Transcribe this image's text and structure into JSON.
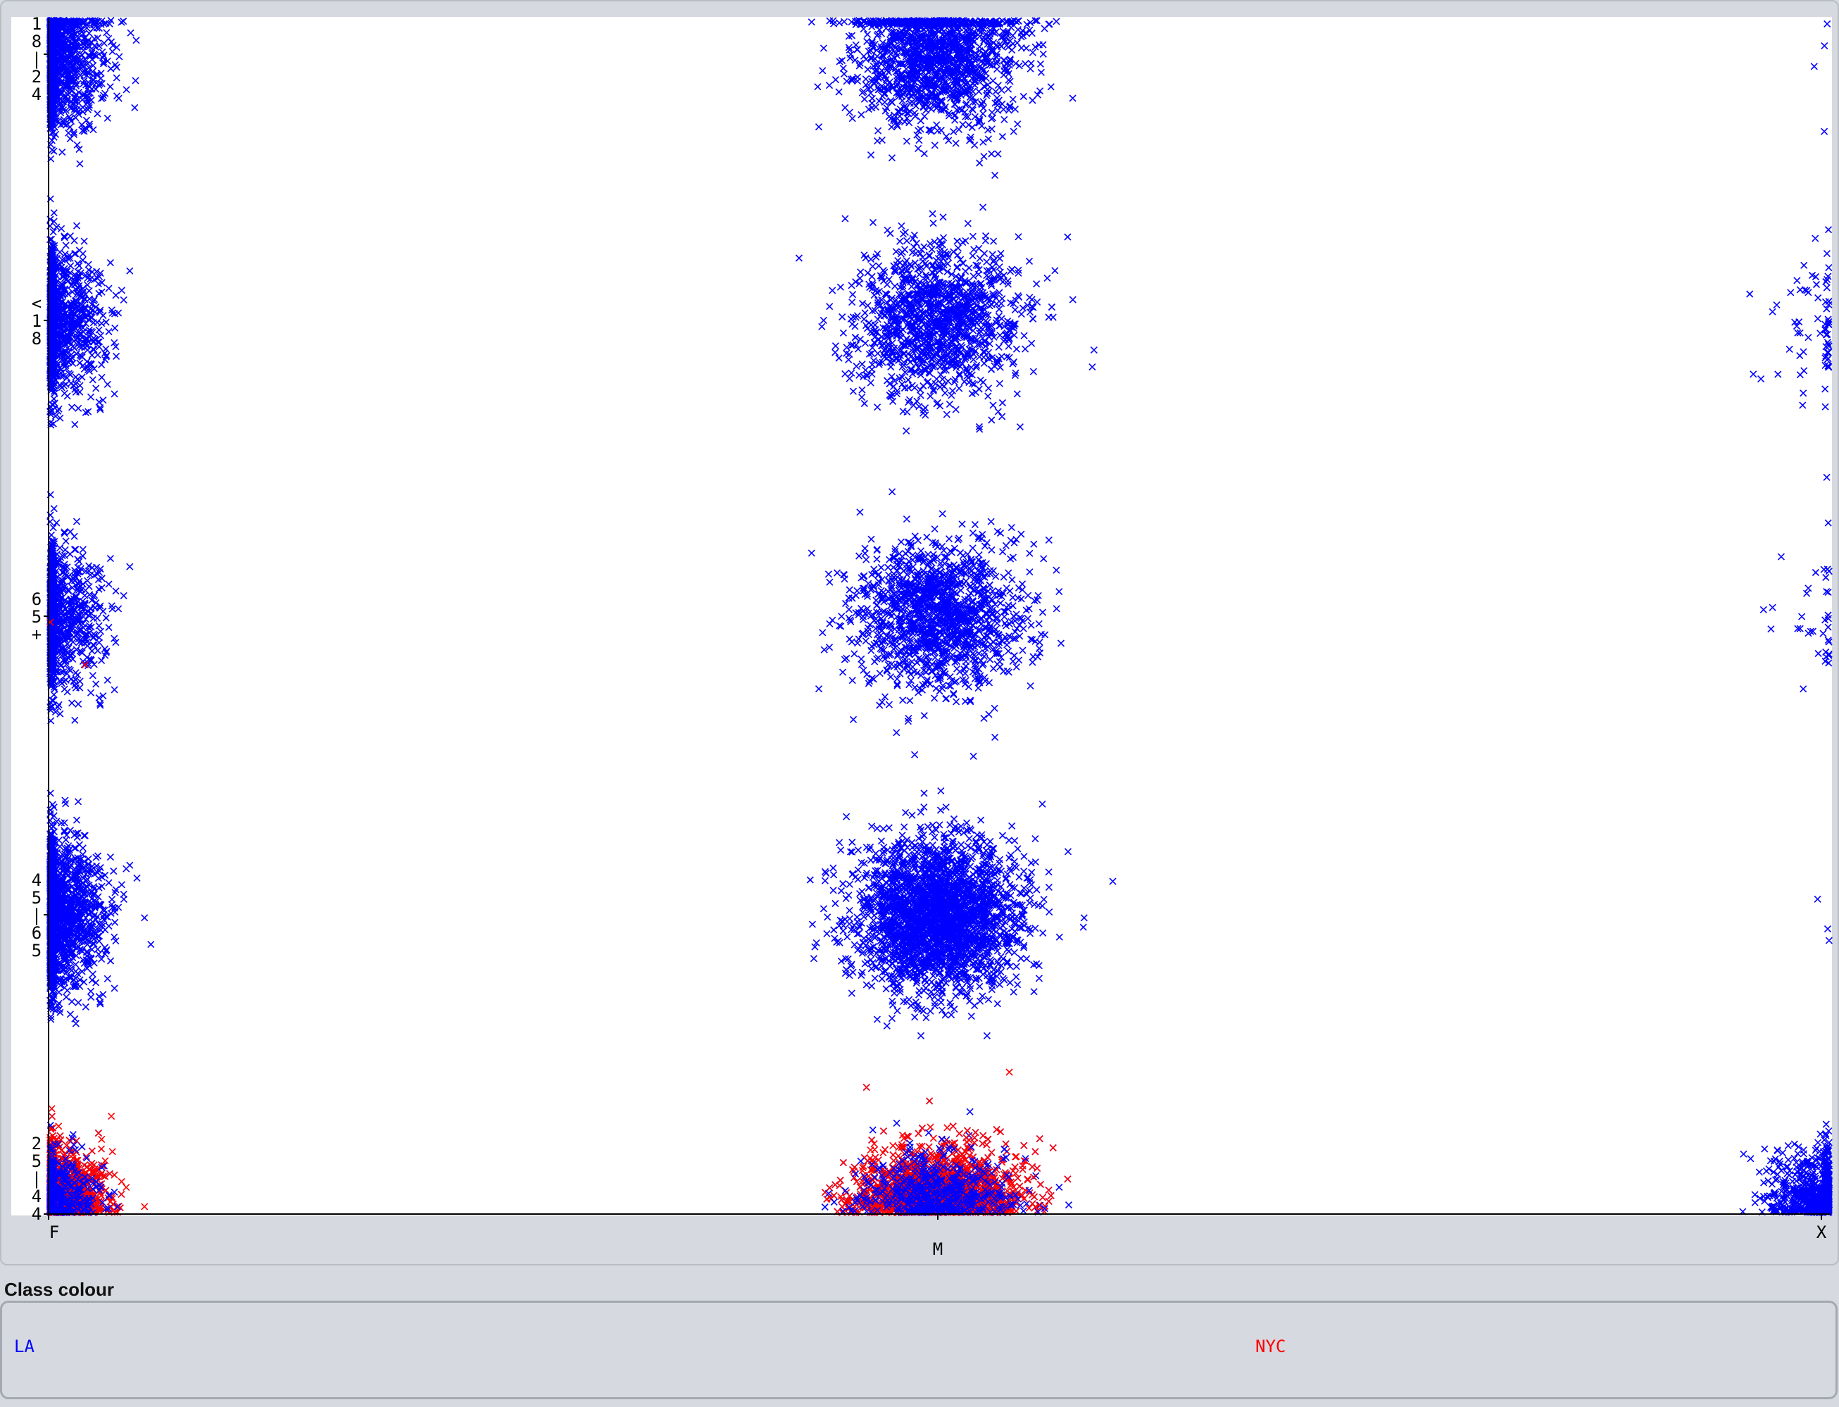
{
  "chart_data": {
    "type": "scatter",
    "marker": "x",
    "x_categories": [
      "F",
      "M",
      "X"
    ],
    "y_categories": [
      "25-44",
      "45-65",
      "65+",
      "<18",
      "18-24"
    ],
    "y_tick_labels": [
      "2\n5\n|\n4\n4",
      "4\n5\n|\n6\n5",
      "6\n5\n+",
      "<\n1\n8",
      "1\n8\n|\n2\n4"
    ],
    "x_tick_labels": [
      "F",
      "M",
      "X"
    ],
    "grid": false,
    "series": [
      {
        "name": "LA",
        "color": "#0000ff",
        "clusters": [
          {
            "x": "F",
            "y": "18-24",
            "n": 1400
          },
          {
            "x": "M",
            "y": "18-24",
            "n": 1500
          },
          {
            "x": "X",
            "y": "18-24",
            "n": 4
          },
          {
            "x": "F",
            "y": "<18",
            "n": 1200
          },
          {
            "x": "M",
            "y": "<18",
            "n": 1300
          },
          {
            "x": "X",
            "y": "<18",
            "n": 70
          },
          {
            "x": "F",
            "y": "65+",
            "n": 1000
          },
          {
            "x": "M",
            "y": "65+",
            "n": 1400
          },
          {
            "x": "X",
            "y": "65+",
            "n": 35
          },
          {
            "x": "F",
            "y": "45-65",
            "n": 1900
          },
          {
            "x": "M",
            "y": "45-65",
            "n": 2600
          },
          {
            "x": "X",
            "y": "45-65",
            "n": 3
          },
          {
            "x": "F",
            "y": "25-44",
            "n": 900
          },
          {
            "x": "M",
            "y": "25-44",
            "n": 1200
          },
          {
            "x": "X",
            "y": "25-44",
            "n": 700
          }
        ]
      },
      {
        "name": "NYC",
        "color": "#ff0000",
        "clusters": [
          {
            "x": "F",
            "y": "25-44",
            "n": 1400
          },
          {
            "x": "M",
            "y": "25-44",
            "n": 1600
          },
          {
            "x": "F",
            "y": "65+",
            "n": 2
          }
        ]
      }
    ]
  },
  "legend": {
    "title": "Class colour",
    "entries": [
      {
        "label": "LA",
        "color": "#0000ff"
      },
      {
        "label": "NYC",
        "color": "#ff0000"
      }
    ]
  }
}
